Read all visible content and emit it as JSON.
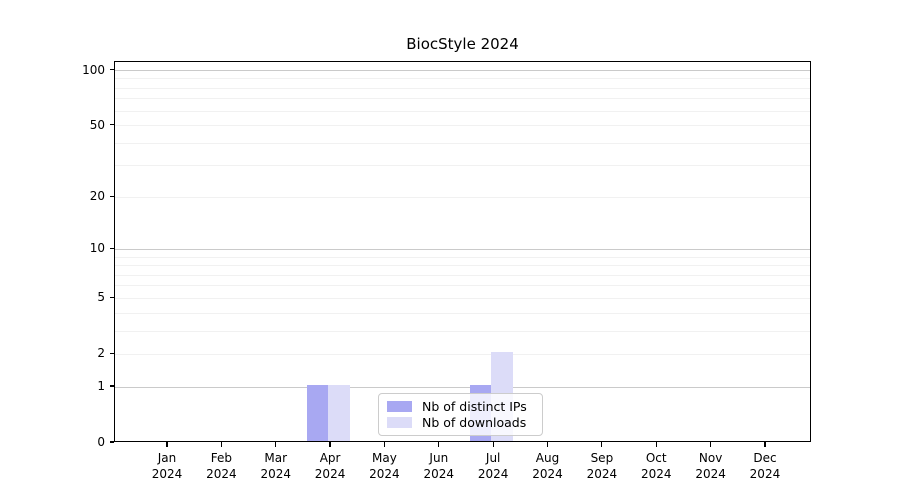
{
  "chart_data": {
    "type": "bar",
    "title": "BiocStyle 2024",
    "x_categories": [
      "Jan 2024",
      "Feb 2024",
      "Mar 2024",
      "Apr 2024",
      "May 2024",
      "Jun 2024",
      "Jul 2024",
      "Aug 2024",
      "Sep 2024",
      "Oct 2024",
      "Nov 2024",
      "Dec 2024"
    ],
    "x_tick_line1": [
      "Jan",
      "Feb",
      "Mar",
      "Apr",
      "May",
      "Jun",
      "Jul",
      "Aug",
      "Sep",
      "Oct",
      "Nov",
      "Dec"
    ],
    "x_tick_line2": "2024",
    "series": [
      {
        "name": "Nb of distinct IPs",
        "color": "#a8a8f2",
        "values": [
          0,
          0,
          0,
          1,
          0,
          0,
          1,
          0,
          0,
          0,
          0,
          0
        ]
      },
      {
        "name": "Nb of downloads",
        "color": "#dcdcf8",
        "values": [
          0,
          0,
          0,
          1,
          0,
          0,
          2,
          0,
          0,
          0,
          0,
          0
        ]
      }
    ],
    "xlabel": "",
    "ylabel": "",
    "yscale": "log1p",
    "ylim": [
      0,
      100
    ],
    "yticks": [
      0,
      1,
      2,
      5,
      10,
      20,
      50,
      100
    ],
    "major_gridlines": [
      1,
      10,
      100
    ],
    "minor_gridlines": [
      2,
      3,
      4,
      5,
      6,
      7,
      8,
      9,
      20,
      30,
      40,
      50,
      60,
      70,
      80,
      90
    ],
    "grid": true,
    "legend_position": "inside-bottom-center"
  },
  "colors": {
    "bar_distinct_ips": "#a8a8f2",
    "bar_downloads": "#dcdcf8",
    "major_grid": "#cacaca",
    "minor_grid": "#f1f1f1",
    "axis": "#000000",
    "legend_border": "#cccccc",
    "background": "#ffffff"
  }
}
